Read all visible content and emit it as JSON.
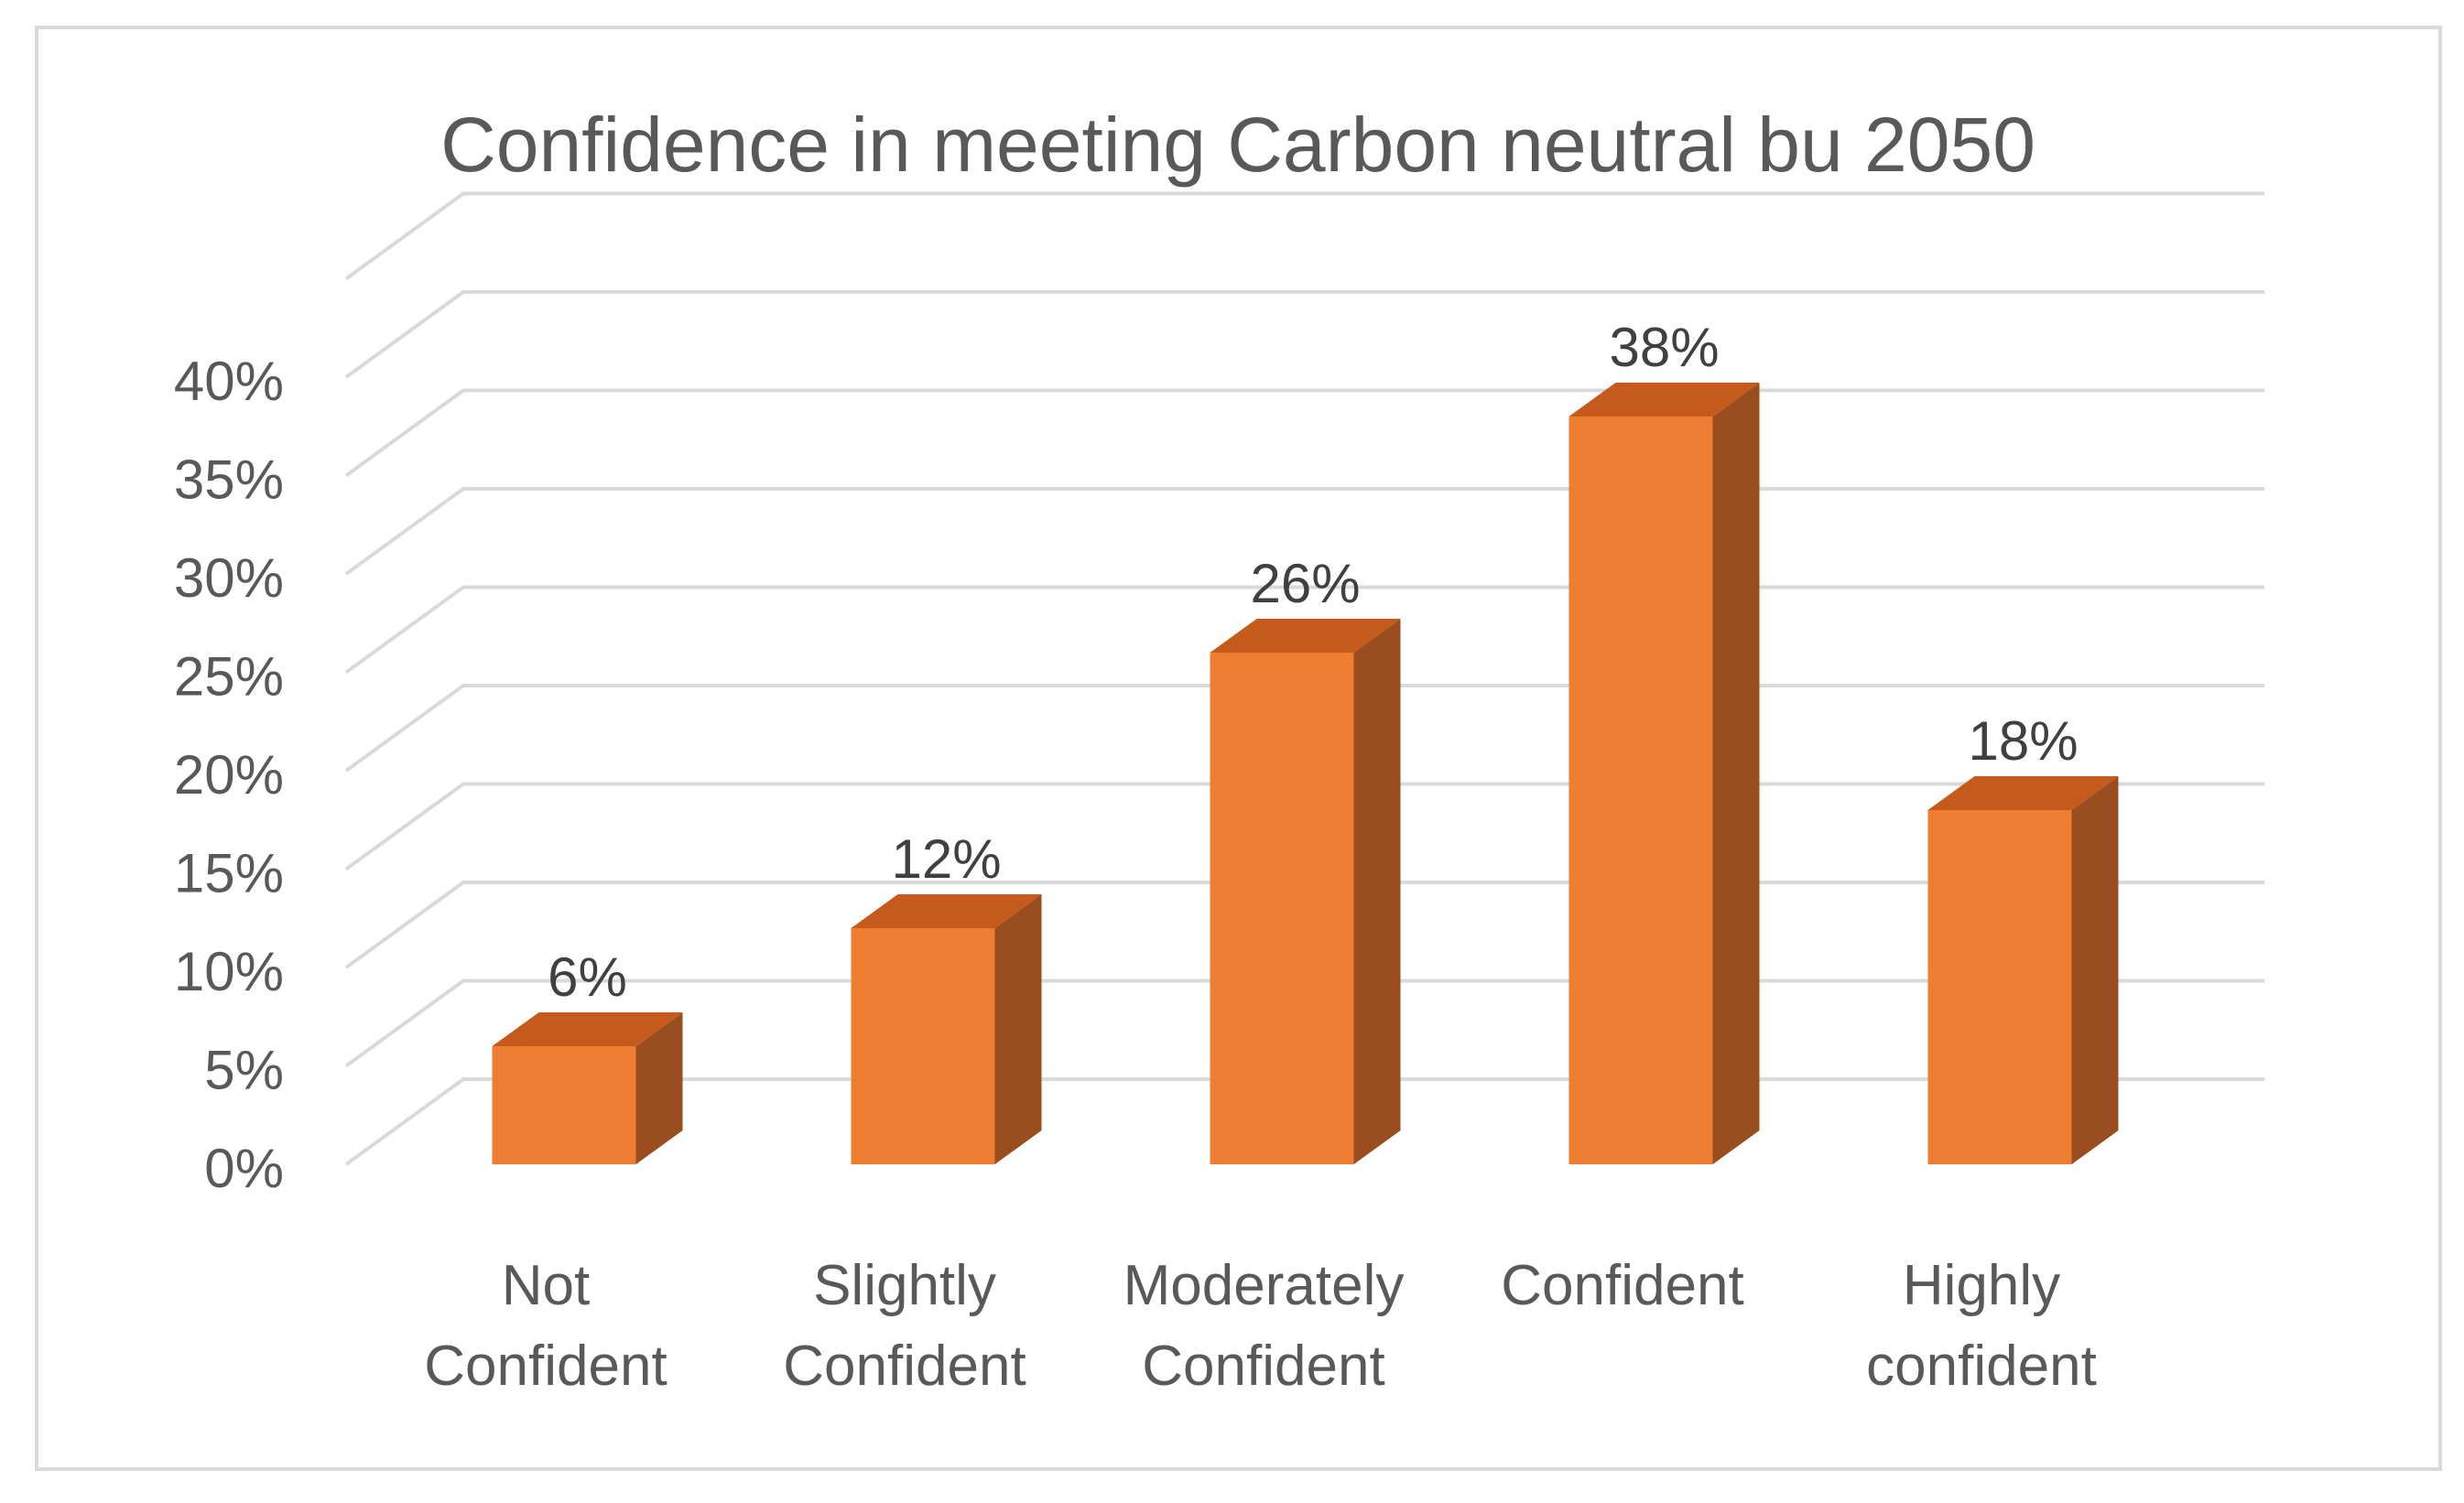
{
  "chart_data": {
    "type": "bar",
    "title": "Confidence in meeting Carbon neutral bu 2050",
    "categories": [
      [
        "Not",
        "Confident"
      ],
      [
        "Slightly",
        "Confident"
      ],
      [
        "Moderately",
        "Confident"
      ],
      [
        "Confident"
      ],
      [
        "Highly",
        "confident"
      ]
    ],
    "values": [
      6,
      12,
      26,
      38,
      18
    ],
    "data_labels": [
      "6%",
      "12%",
      "26%",
      "38%",
      "18%"
    ],
    "yticks": [
      "0%",
      "5%",
      "10%",
      "15%",
      "20%",
      "25%",
      "30%",
      "35%",
      "40%"
    ],
    "ylim": [
      0,
      45
    ],
    "style": "3d-column",
    "grid": true,
    "legend": "none",
    "colors": {
      "bar_front": "#ED7D31",
      "bar_top": "#C55A1C",
      "bar_side": "#9A4D1F",
      "grid": "#D9D9D9",
      "text": "#595959",
      "label": "#404040",
      "border": "#D9D9D9"
    }
  }
}
